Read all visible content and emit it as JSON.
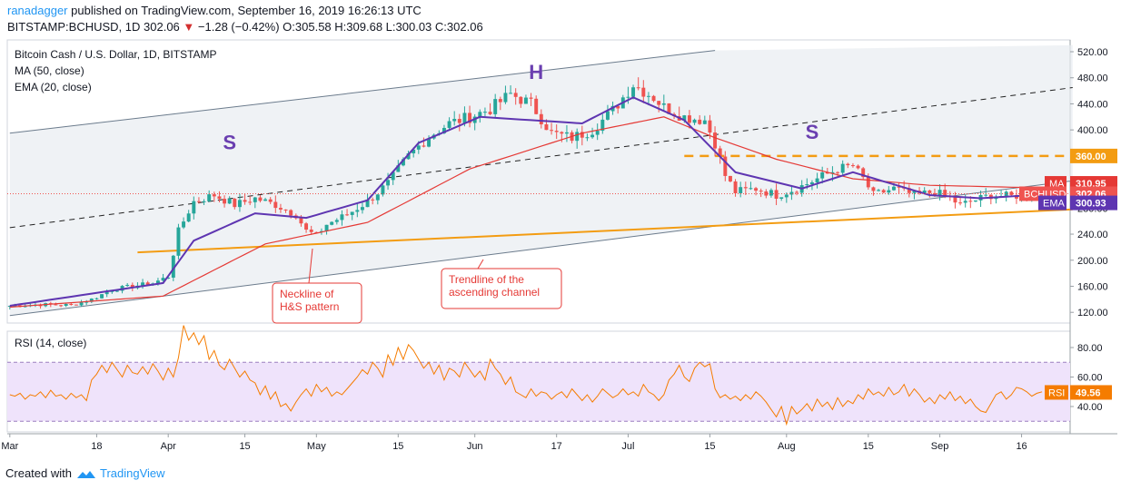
{
  "header": {
    "author": "ranadagger",
    "published_text": "published on TradingView.com, September 16, 2019 16:26:13 UTC",
    "symbol": "BITSTAMP:BCHUSD, 1D",
    "last": "302.06",
    "arrow": "▼",
    "change": "−1.28 (−0.42%)",
    "ohlc": {
      "o_label": "O:",
      "o": "305.58",
      "h_label": "H:",
      "h": "309.68",
      "l_label": "L:",
      "l": "300.03",
      "c_label": "C:",
      "c": "302.06"
    }
  },
  "legend": {
    "title": "Bitcoin Cash / U.S. Dollar, 1D, BITSTAMP",
    "ma": "MA (50, close)",
    "ema": "EMA (20, close)",
    "rsi": "RSI (14, close)"
  },
  "colors": {
    "up": "#26a69a",
    "down": "#ef5350",
    "ma": "#e53935",
    "ema": "#5e35b1",
    "rsi": "#f57c00",
    "trend": "#f39c12",
    "channel": "#6b7b8c",
    "pattern": "#6a3fb0",
    "callout": "#e53935",
    "rsi_band": "#efe3fb"
  },
  "footer": {
    "created_with": "Created with",
    "brand": "TradingView"
  },
  "chart_data": [
    {
      "type": "candlestick",
      "title": "Bitcoin Cash / U.S. Dollar, 1D, BITSTAMP",
      "ylim": [
        100,
        530
      ],
      "y_ticks": [
        "520.00",
        "480.00",
        "440.00",
        "400.00",
        "360.00",
        "320.00",
        "280.00",
        "240.00",
        "200.00",
        "160.00",
        "120.00"
      ],
      "x_ticks": [
        "Mar",
        "18",
        "Apr",
        "15",
        "May",
        "15",
        "Jun",
        "17",
        "Jul",
        "15",
        "Aug",
        "15",
        "Sep",
        "16"
      ],
      "close_path": [
        [
          0,
          130
        ],
        [
          6,
          132
        ],
        [
          12,
          131
        ],
        [
          16,
          140
        ],
        [
          20,
          155
        ],
        [
          24,
          160
        ],
        [
          28,
          165
        ],
        [
          31,
          175
        ],
        [
          33,
          245
        ],
        [
          36,
          290
        ],
        [
          40,
          300
        ],
        [
          44,
          285
        ],
        [
          48,
          295
        ],
        [
          52,
          285
        ],
        [
          56,
          270
        ],
        [
          58,
          245
        ],
        [
          60,
          238
        ],
        [
          62,
          255
        ],
        [
          66,
          270
        ],
        [
          70,
          290
        ],
        [
          74,
          318
        ],
        [
          78,
          360
        ],
        [
          82,
          390
        ],
        [
          86,
          410
        ],
        [
          90,
          420
        ],
        [
          94,
          432
        ],
        [
          98,
          455
        ],
        [
          102,
          440
        ],
        [
          106,
          395
        ],
        [
          110,
          388
        ],
        [
          114,
          400
        ],
        [
          118,
          430
        ],
        [
          122,
          470
        ],
        [
          126,
          450
        ],
        [
          128,
          435
        ],
        [
          132,
          420
        ],
        [
          136,
          415
        ],
        [
          138,
          380
        ],
        [
          140,
          330
        ],
        [
          142,
          305
        ],
        [
          146,
          310
        ],
        [
          150,
          300
        ],
        [
          154,
          310
        ],
        [
          158,
          325
        ],
        [
          162,
          340
        ],
        [
          165,
          345
        ],
        [
          167,
          325
        ],
        [
          169,
          300
        ],
        [
          173,
          310
        ],
        [
          177,
          300
        ],
        [
          181,
          305
        ],
        [
          184,
          295
        ],
        [
          186,
          285
        ],
        [
          188,
          290
        ],
        [
          192,
          300
        ],
        [
          196,
          298
        ],
        [
          200,
          303
        ],
        [
          202,
          302
        ]
      ],
      "ohlc_last": {
        "o": 305.58,
        "h": 309.68,
        "l": 300.03,
        "c": 302.06
      },
      "series": [
        {
          "name": "MA (50, close)",
          "last_value": 310.95,
          "path": [
            [
              0,
              128
            ],
            [
              30,
              145
            ],
            [
              50,
              225
            ],
            [
              70,
              258
            ],
            [
              90,
              340
            ],
            [
              112,
              395
            ],
            [
              128,
              420
            ],
            [
              138,
              388
            ],
            [
              150,
              355
            ],
            [
              165,
              325
            ],
            [
              180,
              315
            ],
            [
              202,
              311
            ]
          ]
        },
        {
          "name": "EMA (20, close)",
          "last_value": 300.93,
          "path": [
            [
              0,
              130
            ],
            [
              30,
              165
            ],
            [
              36,
              230
            ],
            [
              48,
              272
            ],
            [
              58,
              265
            ],
            [
              70,
              292
            ],
            [
              80,
              380
            ],
            [
              92,
              420
            ],
            [
              112,
              410
            ],
            [
              122,
              450
            ],
            [
              132,
              415
            ],
            [
              142,
              335
            ],
            [
              155,
              310
            ],
            [
              165,
              335
            ],
            [
              180,
              300
            ],
            [
              190,
              295
            ],
            [
              202,
              301
            ]
          ]
        }
      ],
      "lines": [
        {
          "name": "Ascending channel upper",
          "points": [
            [
              0,
              395
            ],
            [
              138,
              522
            ]
          ]
        },
        {
          "name": "Ascending channel middle (dashed)",
          "points": [
            [
              0,
              250
            ],
            [
              208,
              465
            ]
          ]
        },
        {
          "name": "Ascending channel lower / trendline",
          "points": [
            [
              0,
              115
            ],
            [
              208,
              322
            ]
          ]
        },
        {
          "name": "Neckline of H&S pattern",
          "points": [
            [
              25,
              212
            ],
            [
              208,
              278
            ]
          ]
        },
        {
          "name": "Resistance (dashed)",
          "points": [
            [
              132,
              360
            ],
            [
              208,
              360
            ]
          ]
        }
      ],
      "price_labels": [
        {
          "name": "level",
          "value": "360.00"
        },
        {
          "name": "MA",
          "value": "310.95"
        },
        {
          "name": "BCHUSD",
          "value": "302.06"
        },
        {
          "name": "EMA",
          "value": "300.93"
        }
      ],
      "annotations": [
        {
          "text": "S",
          "at": [
            43,
            370
          ]
        },
        {
          "text": "H",
          "at": [
            103,
            478
          ]
        },
        {
          "text": "S",
          "at": [
            157,
            386
          ]
        },
        {
          "text_lines": [
            "Neckline of",
            "H&S pattern"
          ]
        },
        {
          "text_lines": [
            "Trendline of the",
            "ascending channel"
          ]
        }
      ]
    },
    {
      "type": "line",
      "title": "RSI (14, close)",
      "ylim": [
        20,
        100
      ],
      "y_ticks": [
        "80.00",
        "60.00",
        "40.00"
      ],
      "band": [
        30,
        70
      ],
      "last_value": 49.56,
      "values": [
        48,
        47,
        49,
        45,
        48,
        47,
        50,
        46,
        51,
        47,
        48,
        45,
        49,
        46,
        48,
        44,
        58,
        62,
        68,
        63,
        70,
        65,
        60,
        68,
        63,
        62,
        67,
        62,
        69,
        64,
        58,
        66,
        60,
        73,
        95,
        85,
        90,
        82,
        88,
        72,
        78,
        68,
        65,
        72,
        66,
        60,
        64,
        58,
        56,
        48,
        54,
        45,
        50,
        40,
        42,
        37,
        43,
        48,
        52,
        47,
        55,
        50,
        53,
        47,
        50,
        48,
        52,
        56,
        60,
        65,
        62,
        70,
        66,
        60,
        75,
        68,
        80,
        72,
        82,
        78,
        72,
        66,
        70,
        62,
        68,
        58,
        66,
        64,
        60,
        70,
        65,
        60,
        64,
        58,
        72,
        66,
        62,
        55,
        60,
        50,
        48,
        46,
        52,
        47,
        50,
        49,
        45,
        48,
        50,
        46,
        52,
        48,
        44,
        48,
        43,
        47,
        52,
        49,
        46,
        48,
        52,
        48,
        50,
        47,
        55,
        50,
        48,
        44,
        48,
        58,
        62,
        68,
        60,
        57,
        66,
        70,
        67,
        69,
        52,
        46,
        48,
        45,
        47,
        44,
        48,
        45,
        50,
        47,
        43,
        38,
        33,
        40,
        28,
        40,
        35,
        38,
        42,
        37,
        45,
        40,
        43,
        38,
        46,
        40,
        44,
        42,
        48,
        45,
        52,
        48,
        50,
        47,
        53,
        48,
        50,
        55,
        47,
        52,
        48,
        43,
        46,
        42,
        48,
        45,
        50,
        44,
        47,
        42,
        45,
        40,
        37,
        36,
        42,
        48,
        50,
        45,
        48,
        53,
        52,
        50,
        47,
        49,
        50
      ]
    }
  ]
}
